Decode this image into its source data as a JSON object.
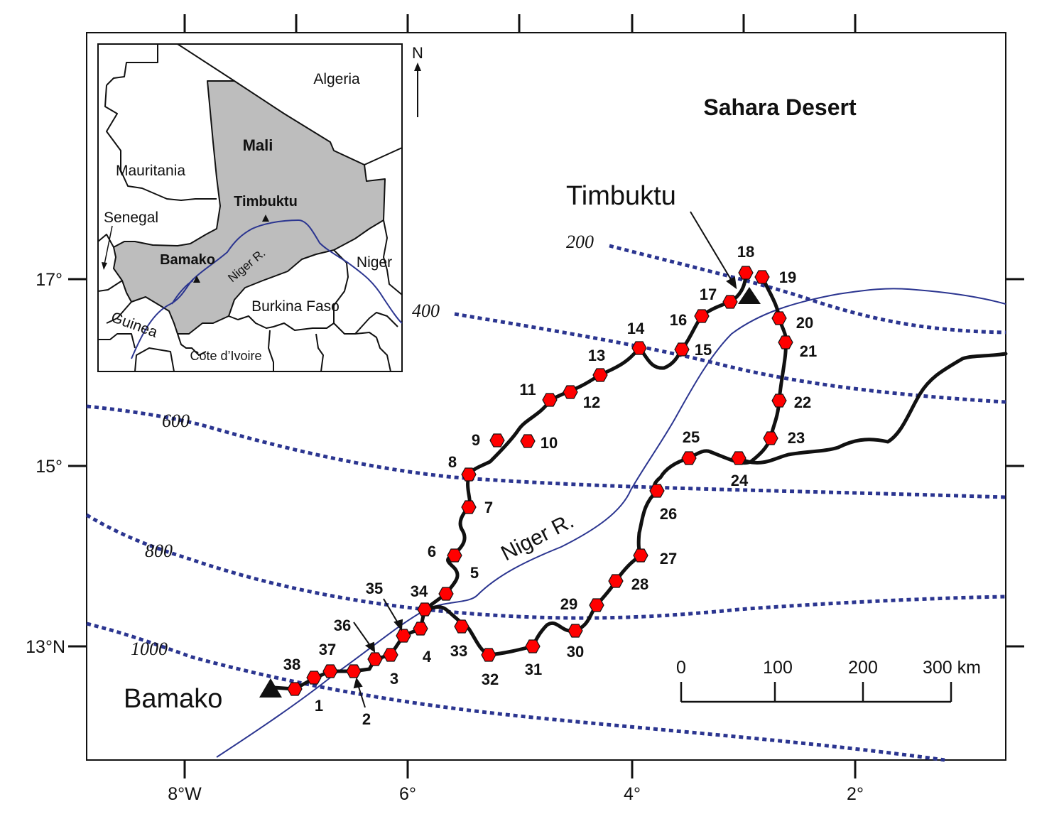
{
  "map": {
    "region_label": "Sahara Desert",
    "cities": [
      {
        "name": "Timbuktu"
      },
      {
        "name": "Bamako"
      }
    ],
    "river_label": "Niger R.",
    "lat_labels": [
      "17°",
      "15°",
      "13°N"
    ],
    "lon_labels": [
      "8°W",
      "6°",
      "4°",
      "2°"
    ],
    "contours": [
      "200",
      "400",
      "600",
      "800",
      "1000"
    ],
    "scale_bar": {
      "ticks": [
        "0",
        "100",
        "200",
        "300 km"
      ]
    },
    "stations": [
      "1",
      "2",
      "3",
      "4",
      "5",
      "6",
      "7",
      "8",
      "9",
      "10",
      "11",
      "12",
      "13",
      "14",
      "15",
      "16",
      "17",
      "18",
      "19",
      "20",
      "21",
      "22",
      "23",
      "24",
      "25",
      "26",
      "27",
      "28",
      "29",
      "30",
      "31",
      "32",
      "33",
      "34",
      "35",
      "36",
      "37",
      "38"
    ],
    "colors": {
      "river": "#2b3590",
      "contour": "#2b3590",
      "station": "#ff0000",
      "mali": "#bdbdbd"
    }
  },
  "inset": {
    "north_label": "N",
    "countries": [
      "Algeria",
      "Mali",
      "Mauritania",
      "Senegal",
      "Niger",
      "Burkina Faso",
      "Guinea",
      "Cote d’Ivoire"
    ],
    "cities": [
      "Timbuktu",
      "Bamako"
    ],
    "river_label": "Niger R."
  }
}
